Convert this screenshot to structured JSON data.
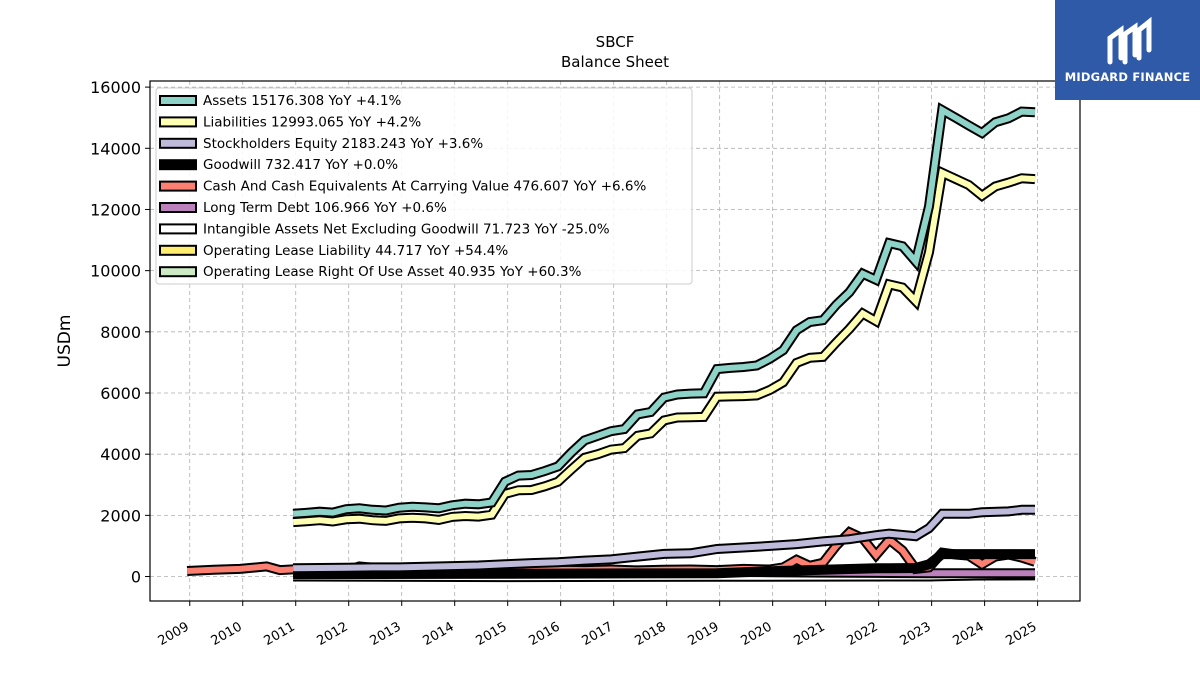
{
  "brand": {
    "name": "MIDGARD FINANCE"
  },
  "chart_data": {
    "type": "line",
    "title": "SBCF",
    "subtitle": "Balance  Sheet",
    "ylabel": "USDm",
    "xlabel": "",
    "xlim": [
      2008.25,
      2025.8
    ],
    "ylim": [
      -800,
      16200
    ],
    "x_ticks": [
      "2009",
      "2010",
      "2011",
      "2012",
      "2013",
      "2014",
      "2015",
      "2016",
      "2017",
      "2018",
      "2019",
      "2020",
      "2021",
      "2022",
      "2023",
      "2024",
      "2025"
    ],
    "y_ticks": [
      "0",
      "2000",
      "4000",
      "6000",
      "8000",
      "10000",
      "12000",
      "14000",
      "16000"
    ],
    "grid": true,
    "legend_position": "top-left",
    "series": [
      {
        "name": "Assets",
        "legend": "Assets  15176.308 YoY +4.1%",
        "color": "#8dd3c7",
        "points": [
          [
            2010.95,
            2050
          ],
          [
            2011.2,
            2080
          ],
          [
            2011.45,
            2120
          ],
          [
            2011.7,
            2090
          ],
          [
            2011.95,
            2200
          ],
          [
            2012.2,
            2230
          ],
          [
            2012.45,
            2180
          ],
          [
            2012.7,
            2160
          ],
          [
            2012.95,
            2250
          ],
          [
            2013.2,
            2280
          ],
          [
            2013.45,
            2260
          ],
          [
            2013.7,
            2230
          ],
          [
            2013.95,
            2330
          ],
          [
            2014.2,
            2380
          ],
          [
            2014.45,
            2360
          ],
          [
            2014.7,
            2420
          ],
          [
            2014.95,
            3100
          ],
          [
            2015.2,
            3300
          ],
          [
            2015.45,
            3320
          ],
          [
            2015.7,
            3450
          ],
          [
            2015.95,
            3600
          ],
          [
            2016.2,
            4050
          ],
          [
            2016.45,
            4450
          ],
          [
            2016.7,
            4600
          ],
          [
            2016.95,
            4750
          ],
          [
            2017.2,
            4820
          ],
          [
            2017.45,
            5300
          ],
          [
            2017.7,
            5380
          ],
          [
            2017.95,
            5850
          ],
          [
            2018.2,
            5950
          ],
          [
            2018.45,
            5980
          ],
          [
            2018.7,
            5990
          ],
          [
            2018.95,
            6780
          ],
          [
            2019.2,
            6820
          ],
          [
            2019.45,
            6850
          ],
          [
            2019.7,
            6900
          ],
          [
            2019.95,
            7120
          ],
          [
            2020.2,
            7400
          ],
          [
            2020.45,
            8050
          ],
          [
            2020.7,
            8320
          ],
          [
            2020.95,
            8380
          ],
          [
            2021.2,
            8880
          ],
          [
            2021.45,
            9300
          ],
          [
            2021.7,
            9900
          ],
          [
            2021.95,
            9700
          ],
          [
            2022.2,
            10900
          ],
          [
            2022.45,
            10800
          ],
          [
            2022.7,
            10300
          ],
          [
            2022.95,
            12100
          ],
          [
            2023.2,
            15250
          ],
          [
            2023.45,
            15000
          ],
          [
            2023.7,
            14750
          ],
          [
            2023.95,
            14500
          ],
          [
            2024.2,
            14850
          ],
          [
            2024.45,
            14980
          ],
          [
            2024.7,
            15200
          ],
          [
            2024.95,
            15176
          ]
        ]
      },
      {
        "name": "Liabilities",
        "legend": "Liabilities  12993.065 YoY +4.2%",
        "color": "#ffffb3",
        "points": [
          [
            2010.95,
            1780
          ],
          [
            2011.2,
            1810
          ],
          [
            2011.45,
            1840
          ],
          [
            2011.7,
            1800
          ],
          [
            2011.95,
            1870
          ],
          [
            2012.2,
            1890
          ],
          [
            2012.45,
            1840
          ],
          [
            2012.7,
            1820
          ],
          [
            2012.95,
            1900
          ],
          [
            2013.2,
            1920
          ],
          [
            2013.45,
            1900
          ],
          [
            2013.7,
            1850
          ],
          [
            2013.95,
            1950
          ],
          [
            2014.2,
            1980
          ],
          [
            2014.45,
            1960
          ],
          [
            2014.7,
            2020
          ],
          [
            2014.95,
            2700
          ],
          [
            2015.2,
            2820
          ],
          [
            2015.45,
            2830
          ],
          [
            2015.7,
            2950
          ],
          [
            2015.95,
            3100
          ],
          [
            2016.2,
            3500
          ],
          [
            2016.45,
            3880
          ],
          [
            2016.7,
            4000
          ],
          [
            2016.95,
            4150
          ],
          [
            2017.2,
            4200
          ],
          [
            2017.45,
            4600
          ],
          [
            2017.7,
            4680
          ],
          [
            2017.95,
            5100
          ],
          [
            2018.2,
            5200
          ],
          [
            2018.45,
            5210
          ],
          [
            2018.7,
            5220
          ],
          [
            2018.95,
            5880
          ],
          [
            2019.2,
            5890
          ],
          [
            2019.45,
            5900
          ],
          [
            2019.7,
            5920
          ],
          [
            2019.95,
            6100
          ],
          [
            2020.2,
            6350
          ],
          [
            2020.45,
            6980
          ],
          [
            2020.7,
            7150
          ],
          [
            2020.95,
            7180
          ],
          [
            2021.2,
            7650
          ],
          [
            2021.45,
            8100
          ],
          [
            2021.7,
            8600
          ],
          [
            2021.95,
            8350
          ],
          [
            2022.2,
            9550
          ],
          [
            2022.45,
            9450
          ],
          [
            2022.7,
            9000
          ],
          [
            2022.95,
            10600
          ],
          [
            2023.2,
            13200
          ],
          [
            2023.45,
            13000
          ],
          [
            2023.7,
            12800
          ],
          [
            2023.95,
            12450
          ],
          [
            2024.2,
            12750
          ],
          [
            2024.45,
            12880
          ],
          [
            2024.7,
            13020
          ],
          [
            2024.95,
            12993
          ]
        ]
      },
      {
        "name": "Stockholders Equity",
        "legend": "Stockholders Equity  2183.243 YoY +3.6%",
        "color": "#bebada",
        "points": [
          [
            2010.95,
            270
          ],
          [
            2011.45,
            280
          ],
          [
            2011.95,
            290
          ],
          [
            2012.45,
            300
          ],
          [
            2012.95,
            300
          ],
          [
            2013.45,
            320
          ],
          [
            2013.95,
            340
          ],
          [
            2014.45,
            360
          ],
          [
            2014.95,
            400
          ],
          [
            2015.45,
            440
          ],
          [
            2015.95,
            470
          ],
          [
            2016.45,
            520
          ],
          [
            2016.95,
            560
          ],
          [
            2017.45,
            650
          ],
          [
            2017.95,
            740
          ],
          [
            2018.45,
            760
          ],
          [
            2018.95,
            900
          ],
          [
            2019.45,
            950
          ],
          [
            2019.95,
            1000
          ],
          [
            2020.45,
            1060
          ],
          [
            2020.95,
            1150
          ],
          [
            2021.45,
            1220
          ],
          [
            2021.95,
            1350
          ],
          [
            2022.2,
            1400
          ],
          [
            2022.7,
            1320
          ],
          [
            2022.95,
            1580
          ],
          [
            2023.2,
            2050
          ],
          [
            2023.7,
            2050
          ],
          [
            2023.95,
            2100
          ],
          [
            2024.45,
            2130
          ],
          [
            2024.7,
            2180
          ],
          [
            2024.95,
            2183
          ]
        ]
      },
      {
        "name": "Goodwill",
        "legend": "Goodwill  732.417 YoY +0.0%",
        "color": "#000000",
        "points": [
          [
            2010.95,
            80
          ],
          [
            2014.95,
            90
          ],
          [
            2018.95,
            110
          ],
          [
            2019.95,
            170
          ],
          [
            2020.95,
            220
          ],
          [
            2021.95,
            270
          ],
          [
            2022.7,
            280
          ],
          [
            2022.95,
            400
          ],
          [
            2023.2,
            732
          ],
          [
            2024.95,
            732
          ]
        ]
      },
      {
        "name": "Cash And Cash Equivalents At Carrying Value",
        "legend": "Cash And Cash Equivalents At Carrying Value  476.607 YoY +6.6%",
        "color": "#fb8072",
        "points": [
          [
            2008.95,
            180
          ],
          [
            2009.45,
            220
          ],
          [
            2009.95,
            250
          ],
          [
            2010.45,
            330
          ],
          [
            2010.7,
            210
          ],
          [
            2011.2,
            260
          ],
          [
            2011.7,
            200
          ],
          [
            2011.95,
            190
          ],
          [
            2012.2,
            330
          ],
          [
            2012.7,
            250
          ],
          [
            2013.2,
            280
          ],
          [
            2013.45,
            230
          ],
          [
            2013.7,
            200
          ],
          [
            2014.2,
            280
          ],
          [
            2014.7,
            170
          ],
          [
            2014.95,
            180
          ],
          [
            2015.2,
            260
          ],
          [
            2015.45,
            200
          ],
          [
            2015.95,
            220
          ],
          [
            2016.45,
            210
          ],
          [
            2016.95,
            230
          ],
          [
            2017.45,
            200
          ],
          [
            2017.95,
            220
          ],
          [
            2018.45,
            230
          ],
          [
            2018.95,
            210
          ],
          [
            2019.45,
            250
          ],
          [
            2019.95,
            230
          ],
          [
            2020.2,
            300
          ],
          [
            2020.45,
            550
          ],
          [
            2020.7,
            350
          ],
          [
            2020.95,
            450
          ],
          [
            2021.2,
            1000
          ],
          [
            2021.45,
            1450
          ],
          [
            2021.7,
            1250
          ],
          [
            2021.95,
            700
          ],
          [
            2022.2,
            1200
          ],
          [
            2022.45,
            850
          ],
          [
            2022.7,
            250
          ],
          [
            2022.95,
            300
          ],
          [
            2023.2,
            780
          ],
          [
            2023.45,
            720
          ],
          [
            2023.7,
            680
          ],
          [
            2023.95,
            400
          ],
          [
            2024.2,
            650
          ],
          [
            2024.45,
            720
          ],
          [
            2024.7,
            620
          ],
          [
            2024.95,
            477
          ]
        ]
      },
      {
        "name": "Long Term Debt",
        "legend": "Long Term Debt  106.966 YoY +0.6%",
        "color": "#bc80bd",
        "points": [
          [
            2018.95,
            150
          ],
          [
            2019.95,
            140
          ],
          [
            2020.95,
            130
          ],
          [
            2021.95,
            120
          ],
          [
            2022.95,
            110
          ],
          [
            2023.95,
            107
          ],
          [
            2024.95,
            107
          ]
        ]
      },
      {
        "name": "Intangible Assets Net Excluding Goodwill",
        "legend": "Intangible Assets Net Excluding Goodwill  71.723 YoY -25.0%",
        "color": "#ffffff",
        "points": [
          [
            2010.95,
            0
          ],
          [
            2014.95,
            -20
          ],
          [
            2018.95,
            -10
          ],
          [
            2022.95,
            0
          ],
          [
            2024.95,
            72
          ]
        ]
      },
      {
        "name": "Operating Lease Liability",
        "legend": "Operating Lease Liability  44.717 YoY +54.4%",
        "color": "#ffed6f",
        "points": [
          [
            2019.2,
            30
          ],
          [
            2020.95,
            28
          ],
          [
            2022.95,
            30
          ],
          [
            2024.95,
            45
          ]
        ]
      },
      {
        "name": "Operating Lease Right Of Use Asset",
        "legend": "Operating Lease Right Of Use Asset  40.935 YoY +60.3%",
        "color": "#ccebc5",
        "points": [
          [
            2019.2,
            25
          ],
          [
            2020.95,
            22
          ],
          [
            2022.95,
            25
          ],
          [
            2024.95,
            41
          ]
        ]
      }
    ]
  }
}
